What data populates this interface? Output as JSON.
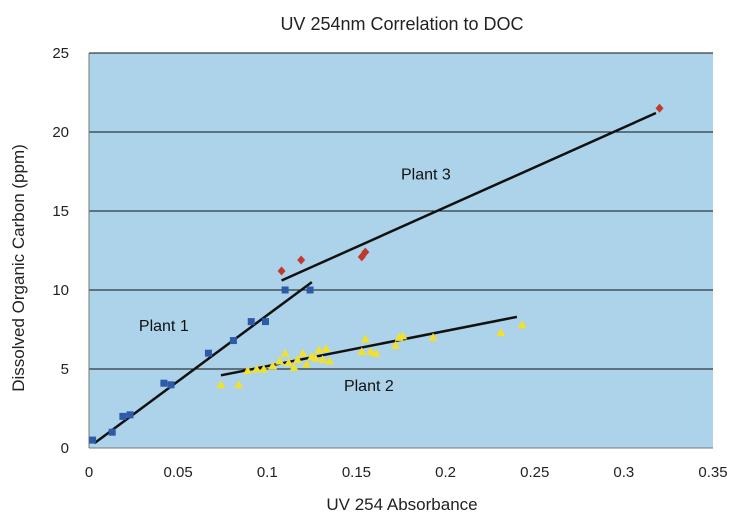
{
  "chart_data": {
    "type": "scatter",
    "title": "UV 254nm Correlation to DOC",
    "xlabel": "UV 254 Absorbance",
    "ylabel": "Dissolved Organic Carbon (ppm)",
    "xlim": [
      0,
      0.35
    ],
    "ylim": [
      0,
      25
    ],
    "xticks": [
      0,
      0.05,
      0.1,
      0.15,
      0.2,
      0.25,
      0.3,
      0.35
    ],
    "xtick_labels": [
      "0",
      "0.05",
      "0.1",
      "0.15",
      "0.2",
      "0.25",
      "0.3",
      "0.35"
    ],
    "yticks": [
      0,
      5,
      10,
      15,
      20,
      25
    ],
    "ytick_labels": [
      "0",
      "5",
      "10",
      "15",
      "20",
      "25"
    ],
    "grid": "horizontal",
    "plot_background": "#acd3ea",
    "series": [
      {
        "name": "Plant 1",
        "marker": "square",
        "color": "#2e5aa8",
        "x": [
          0.002,
          0.013,
          0.019,
          0.023,
          0.042,
          0.046,
          0.067,
          0.081,
          0.091,
          0.099,
          0.11,
          0.124
        ],
        "y": [
          0.5,
          1.0,
          2.0,
          2.1,
          4.1,
          4.0,
          6.0,
          6.8,
          8.0,
          8.0,
          10.0,
          10.0
        ],
        "trend": [
          [
            0.003,
            0.3
          ],
          [
            0.125,
            10.5
          ]
        ]
      },
      {
        "name": "Plant 2",
        "marker": "triangle",
        "color": "#f2e02c",
        "x": [
          0.074,
          0.084,
          0.089,
          0.094,
          0.098,
          0.103,
          0.107,
          0.11,
          0.112,
          0.115,
          0.117,
          0.12,
          0.122,
          0.125,
          0.127,
          0.129,
          0.131,
          0.133,
          0.135,
          0.153,
          0.155,
          0.158,
          0.161,
          0.172,
          0.174,
          0.176,
          0.193,
          0.231,
          0.243
        ],
        "y": [
          4.0,
          4.0,
          4.9,
          5.0,
          5.0,
          5.2,
          5.5,
          6.0,
          5.4,
          5.1,
          5.6,
          6.0,
          5.3,
          5.8,
          5.7,
          6.2,
          5.6,
          6.3,
          5.5,
          6.1,
          6.9,
          6.1,
          6.0,
          6.5,
          7.0,
          7.1,
          7.0,
          7.3,
          7.8
        ],
        "trend": [
          [
            0.074,
            4.6
          ],
          [
            0.24,
            8.3
          ]
        ]
      },
      {
        "name": "Plant 3",
        "marker": "diamond",
        "color": "#c0392b",
        "x": [
          0.108,
          0.119,
          0.153,
          0.155,
          0.32
        ],
        "y": [
          11.2,
          11.9,
          12.1,
          12.4,
          21.5
        ],
        "trend": [
          [
            0.108,
            10.6
          ],
          [
            0.318,
            21.2
          ]
        ]
      }
    ],
    "annotations": [
      {
        "text": "Plant 1",
        "x": 0.028,
        "y": 7.4
      },
      {
        "text": "Plant 2",
        "x": 0.143,
        "y": 3.6
      },
      {
        "text": "Plant 3",
        "x": 0.175,
        "y": 17.0
      }
    ]
  }
}
